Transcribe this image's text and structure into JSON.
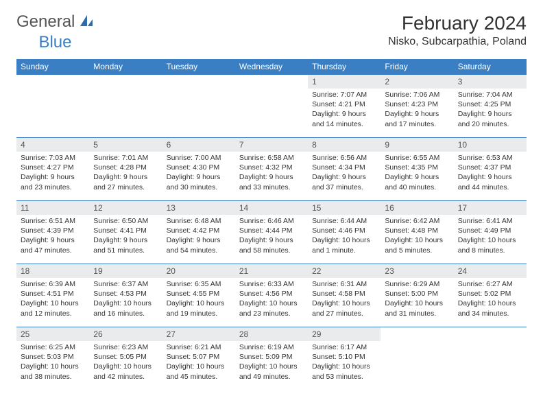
{
  "logo": {
    "general": "General",
    "blue": "Blue"
  },
  "title": "February 2024",
  "location": "Nisko, Subcarpathia, Poland",
  "colors": {
    "header_bg": "#3a7fc4",
    "header_fg": "#ffffff",
    "daynum_bg": "#e9ebec",
    "text": "#333333",
    "border": "#3a7fc4",
    "background": "#ffffff"
  },
  "fonts": {
    "title_size": 28,
    "location_size": 16,
    "dayhdr_size": 12,
    "cell_size": 10.5
  },
  "dayHeaders": [
    "Sunday",
    "Monday",
    "Tuesday",
    "Wednesday",
    "Thursday",
    "Friday",
    "Saturday"
  ],
  "weeks": [
    [
      {
        "empty": true
      },
      {
        "empty": true
      },
      {
        "empty": true
      },
      {
        "empty": true
      },
      {
        "day": "1",
        "sunrise": "Sunrise: 7:07 AM",
        "sunset": "Sunset: 4:21 PM",
        "daylight": "Daylight: 9 hours and 14 minutes."
      },
      {
        "day": "2",
        "sunrise": "Sunrise: 7:06 AM",
        "sunset": "Sunset: 4:23 PM",
        "daylight": "Daylight: 9 hours and 17 minutes."
      },
      {
        "day": "3",
        "sunrise": "Sunrise: 7:04 AM",
        "sunset": "Sunset: 4:25 PM",
        "daylight": "Daylight: 9 hours and 20 minutes."
      }
    ],
    [
      {
        "day": "4",
        "sunrise": "Sunrise: 7:03 AM",
        "sunset": "Sunset: 4:27 PM",
        "daylight": "Daylight: 9 hours and 23 minutes."
      },
      {
        "day": "5",
        "sunrise": "Sunrise: 7:01 AM",
        "sunset": "Sunset: 4:28 PM",
        "daylight": "Daylight: 9 hours and 27 minutes."
      },
      {
        "day": "6",
        "sunrise": "Sunrise: 7:00 AM",
        "sunset": "Sunset: 4:30 PM",
        "daylight": "Daylight: 9 hours and 30 minutes."
      },
      {
        "day": "7",
        "sunrise": "Sunrise: 6:58 AM",
        "sunset": "Sunset: 4:32 PM",
        "daylight": "Daylight: 9 hours and 33 minutes."
      },
      {
        "day": "8",
        "sunrise": "Sunrise: 6:56 AM",
        "sunset": "Sunset: 4:34 PM",
        "daylight": "Daylight: 9 hours and 37 minutes."
      },
      {
        "day": "9",
        "sunrise": "Sunrise: 6:55 AM",
        "sunset": "Sunset: 4:35 PM",
        "daylight": "Daylight: 9 hours and 40 minutes."
      },
      {
        "day": "10",
        "sunrise": "Sunrise: 6:53 AM",
        "sunset": "Sunset: 4:37 PM",
        "daylight": "Daylight: 9 hours and 44 minutes."
      }
    ],
    [
      {
        "day": "11",
        "sunrise": "Sunrise: 6:51 AM",
        "sunset": "Sunset: 4:39 PM",
        "daylight": "Daylight: 9 hours and 47 minutes."
      },
      {
        "day": "12",
        "sunrise": "Sunrise: 6:50 AM",
        "sunset": "Sunset: 4:41 PM",
        "daylight": "Daylight: 9 hours and 51 minutes."
      },
      {
        "day": "13",
        "sunrise": "Sunrise: 6:48 AM",
        "sunset": "Sunset: 4:42 PM",
        "daylight": "Daylight: 9 hours and 54 minutes."
      },
      {
        "day": "14",
        "sunrise": "Sunrise: 6:46 AM",
        "sunset": "Sunset: 4:44 PM",
        "daylight": "Daylight: 9 hours and 58 minutes."
      },
      {
        "day": "15",
        "sunrise": "Sunrise: 6:44 AM",
        "sunset": "Sunset: 4:46 PM",
        "daylight": "Daylight: 10 hours and 1 minute."
      },
      {
        "day": "16",
        "sunrise": "Sunrise: 6:42 AM",
        "sunset": "Sunset: 4:48 PM",
        "daylight": "Daylight: 10 hours and 5 minutes."
      },
      {
        "day": "17",
        "sunrise": "Sunrise: 6:41 AM",
        "sunset": "Sunset: 4:49 PM",
        "daylight": "Daylight: 10 hours and 8 minutes."
      }
    ],
    [
      {
        "day": "18",
        "sunrise": "Sunrise: 6:39 AM",
        "sunset": "Sunset: 4:51 PM",
        "daylight": "Daylight: 10 hours and 12 minutes."
      },
      {
        "day": "19",
        "sunrise": "Sunrise: 6:37 AM",
        "sunset": "Sunset: 4:53 PM",
        "daylight": "Daylight: 10 hours and 16 minutes."
      },
      {
        "day": "20",
        "sunrise": "Sunrise: 6:35 AM",
        "sunset": "Sunset: 4:55 PM",
        "daylight": "Daylight: 10 hours and 19 minutes."
      },
      {
        "day": "21",
        "sunrise": "Sunrise: 6:33 AM",
        "sunset": "Sunset: 4:56 PM",
        "daylight": "Daylight: 10 hours and 23 minutes."
      },
      {
        "day": "22",
        "sunrise": "Sunrise: 6:31 AM",
        "sunset": "Sunset: 4:58 PM",
        "daylight": "Daylight: 10 hours and 27 minutes."
      },
      {
        "day": "23",
        "sunrise": "Sunrise: 6:29 AM",
        "sunset": "Sunset: 5:00 PM",
        "daylight": "Daylight: 10 hours and 31 minutes."
      },
      {
        "day": "24",
        "sunrise": "Sunrise: 6:27 AM",
        "sunset": "Sunset: 5:02 PM",
        "daylight": "Daylight: 10 hours and 34 minutes."
      }
    ],
    [
      {
        "day": "25",
        "sunrise": "Sunrise: 6:25 AM",
        "sunset": "Sunset: 5:03 PM",
        "daylight": "Daylight: 10 hours and 38 minutes."
      },
      {
        "day": "26",
        "sunrise": "Sunrise: 6:23 AM",
        "sunset": "Sunset: 5:05 PM",
        "daylight": "Daylight: 10 hours and 42 minutes."
      },
      {
        "day": "27",
        "sunrise": "Sunrise: 6:21 AM",
        "sunset": "Sunset: 5:07 PM",
        "daylight": "Daylight: 10 hours and 45 minutes."
      },
      {
        "day": "28",
        "sunrise": "Sunrise: 6:19 AM",
        "sunset": "Sunset: 5:09 PM",
        "daylight": "Daylight: 10 hours and 49 minutes."
      },
      {
        "day": "29",
        "sunrise": "Sunrise: 6:17 AM",
        "sunset": "Sunset: 5:10 PM",
        "daylight": "Daylight: 10 hours and 53 minutes."
      },
      {
        "empty": true
      },
      {
        "empty": true
      }
    ]
  ]
}
